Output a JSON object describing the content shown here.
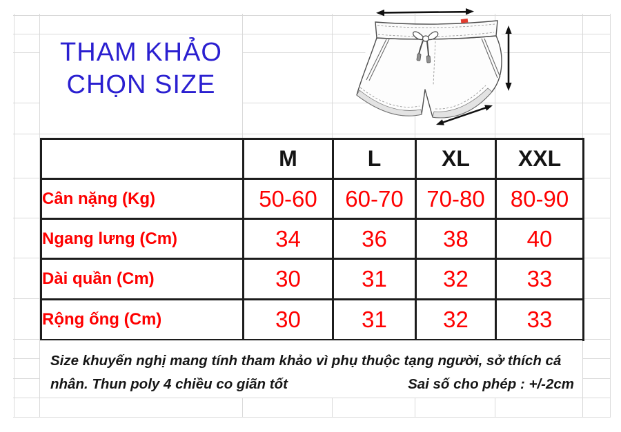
{
  "title": {
    "line1": "THAM KHẢO",
    "line2": "CHỌN SIZE"
  },
  "size_table": {
    "headers": [
      "M",
      "L",
      "XL",
      "XXL"
    ],
    "rows": [
      {
        "label": "Cân nặng (Kg)",
        "values": [
          "50-60",
          "60-70",
          "70-80",
          "80-90"
        ]
      },
      {
        "label": "Ngang lưng (Cm)",
        "values": [
          "34",
          "36",
          "38",
          "40"
        ]
      },
      {
        "label": "Dài quần (Cm)",
        "values": [
          "30",
          "31",
          "32",
          "33"
        ]
      },
      {
        "label": "Rộng ống (Cm)",
        "values": [
          "30",
          "31",
          "32",
          "33"
        ]
      }
    ]
  },
  "note": {
    "line1": "Size khuyến nghị mang tính tham khảo vì phụ thuộc tạng người, sở thích cá",
    "line2_left": "nhân. Thun poly 4 chiều co giãn tốt",
    "line2_right": "Sai số cho phép : +/-2cm"
  },
  "illustration": {
    "subject": "shorts-line-drawing",
    "arrows": [
      "waist-width-arrow",
      "length-arrow",
      "leg-opening-arrow"
    ],
    "tag_color": "#e23b2e"
  },
  "colors": {
    "title_blue": "#2a1fd0",
    "table_red": "#fe0000",
    "border_black": "#1c1c1c",
    "grid_gray": "#d9d9d9"
  }
}
